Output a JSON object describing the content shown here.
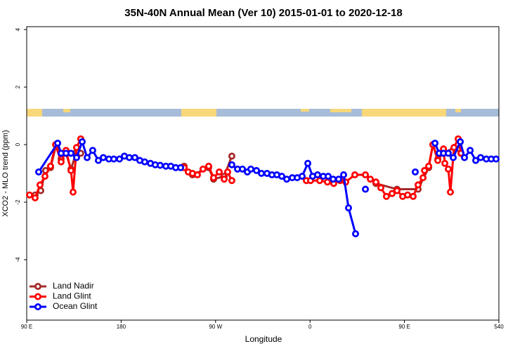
{
  "chart_data": {
    "type": "line",
    "title": "35N-40N Annual Mean (Ver 10)   2015-01-01 to 2020-12-18",
    "x_label": "Longitude",
    "y_label": "XCO2 - MLO trend (ppm)",
    "xlim": [
      90,
      540
    ],
    "ylim": [
      -6.1,
      4.1
    ],
    "xticks": [
      {
        "value": 90,
        "label": "90 E"
      },
      180,
      {
        "value": 270,
        "label": "90 W"
      },
      {
        "value": 360,
        "label": "0"
      },
      {
        "value": 450,
        "label": "90 E"
      },
      540
    ],
    "yticks": [
      -4,
      -2,
      0,
      2,
      4
    ],
    "legend": "bottom-left",
    "series": [
      {
        "name": "Land Nadir",
        "color": "#a52a2a",
        "x": [
          98,
          103.4,
          108,
          112.7,
          118.1,
          122.8,
          127.5,
          132.2,
          137.5,
          141.5,
          null,
          240,
          248,
          263.4,
          268.1,
          278.2,
          285.5,
          null,
          422.8,
          442.9,
          463,
          473.1,
          477.1,
          481.8,
          487.2,
          497.2,
          503.9
        ],
        "values": [
          -1.75,
          -1.6,
          -0.9,
          -0.8,
          0.0,
          -0.5,
          -0.3,
          -0.85,
          -0.25,
          -0.3,
          null,
          -0.75,
          -1.05,
          -0.8,
          -1.2,
          -1.1,
          -0.4,
          null,
          -1.35,
          -1.55,
          -1.55,
          -0.8,
          0.0,
          -0.5,
          -0.3,
          -0.1,
          -0.3
        ]
      },
      {
        "name": "Land Glint",
        "color": "#ff0000",
        "x": [
          92.7,
          98,
          102.7,
          107.4,
          112.7,
          117.5,
          122.8,
          127.5,
          132.2,
          134.2,
          137.5,
          141.5,
          null,
          240,
          244,
          248,
          252.7,
          258,
          263.4,
          268.1,
          273.5,
          278.2,
          281.5,
          285.5,
          null,
          356.5,
          360.5,
          369.2,
          376.6,
          382.6,
          388.7,
          394,
          402.7,
          412.8,
          417.5,
          422.8,
          427.5,
          432.8,
          438.2,
          442.9,
          448.3,
          453,
          458.3,
          463,
          467.7,
          469.1,
          473.1,
          477.1,
          481.8,
          487.2,
          488.5,
          491.8,
          493.8,
          497.2,
          501.2,
          503.9
        ],
        "values": [
          -1.75,
          -1.85,
          -1.4,
          -1.1,
          -0.75,
          0.0,
          -0.6,
          -0.2,
          -0.9,
          -1.65,
          -0.1,
          0.2,
          null,
          -0.8,
          -0.95,
          -1.0,
          -1.05,
          -0.85,
          -0.75,
          -1.15,
          -0.95,
          -1.2,
          -0.95,
          -1.25,
          null,
          -1.25,
          -1.25,
          -1.25,
          -1.3,
          -1.35,
          -1.25,
          -1.3,
          -1.05,
          -1.05,
          -1.2,
          -1.3,
          -1.5,
          -1.8,
          -1.7,
          -1.6,
          -1.8,
          -1.75,
          -1.8,
          -1.4,
          -1.15,
          -0.9,
          -0.75,
          0.0,
          -0.55,
          -0.15,
          -0.65,
          -0.85,
          -1.65,
          -0.1,
          0.2,
          -0.3
        ]
      },
      {
        "name": "Ocean Glint",
        "color": "#0000ff",
        "x": [
          101.4,
          119.5,
          122.8,
          127.5,
          132.2,
          137.5,
          142.9,
          147.6,
          152.9,
          158.3,
          163,
          168.3,
          173,
          178.4,
          183.1,
          187.8,
          193.1,
          197.8,
          202.5,
          207.9,
          212.5,
          217.2,
          222.6,
          227.3,
          232,
          236.7,
          null,
          285.5,
          290.9,
          295.6,
          300.3,
          303.6,
          309,
          313.7,
          319,
          323.7,
          328.4,
          333.1,
          337.8,
          343.1,
          347.8,
          352.5,
          357.9,
          362.5,
          367.2,
          372.6,
          377.3,
          382,
          387.3,
          392,
          396.7,
          403.4,
          null,
          412.8,
          null,
          460.3,
          null,
          479.1,
          483.1,
          487.2,
          491.8,
          496.5,
          503.2,
          507.2,
          512.6,
          517.9,
          522.6,
          528,
          532.7,
          537.3
        ],
        "values": [
          -0.95,
          0.05,
          -0.3,
          -0.3,
          -0.3,
          -0.45,
          0.1,
          -0.45,
          -0.2,
          -0.55,
          -0.45,
          -0.5,
          -0.5,
          -0.5,
          -0.4,
          -0.45,
          -0.45,
          -0.55,
          -0.6,
          -0.65,
          -0.7,
          -0.72,
          -0.75,
          -0.75,
          -0.8,
          -0.8,
          null,
          -0.7,
          -0.85,
          -0.85,
          -0.95,
          -0.85,
          -0.9,
          -1.0,
          -1.0,
          -1.05,
          -1.05,
          -1.1,
          -1.2,
          -1.15,
          -1.15,
          -1.1,
          -0.65,
          -1.1,
          -1.05,
          -1.1,
          -1.1,
          -1.2,
          -1.2,
          -1.05,
          -2.2,
          -3.1,
          null,
          -1.55,
          null,
          -0.95,
          null,
          0.05,
          -0.3,
          -0.3,
          -0.3,
          -0.45,
          0.1,
          -0.45,
          -0.2,
          -0.55,
          -0.45,
          -0.5,
          -0.5,
          -0.5
        ]
      }
    ]
  }
}
